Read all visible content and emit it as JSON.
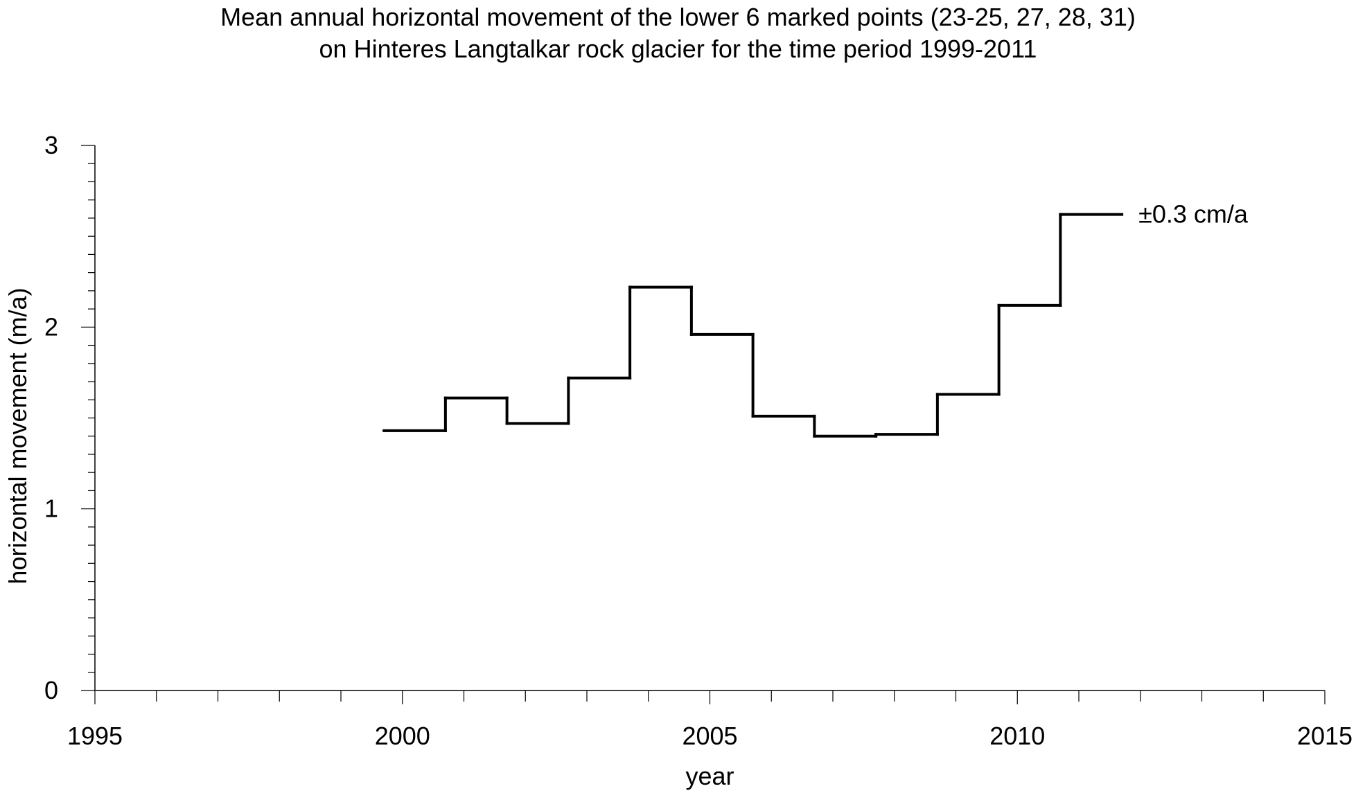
{
  "chart_data": {
    "type": "line",
    "title": "Mean annual horizontal movement of the lower 6 marked points (23-25, 27, 28, 31)",
    "subtitle": "on Hinteres Langtalkar rock glacier for the time period 1999-2011",
    "xlabel": "year",
    "ylabel": "horizontal movement (m/a)",
    "xlim": [
      1995,
      2015
    ],
    "ylim": [
      0,
      3
    ],
    "x_ticks": [
      "1995",
      "2000",
      "2005",
      "2010",
      "2015"
    ],
    "y_ticks": [
      "0",
      "1",
      "2",
      "3"
    ],
    "x_minor_step": 1,
    "y_minor_step": 0.1,
    "grid": false,
    "legend": "none",
    "line_color": "#000000",
    "series": [
      {
        "style": "step",
        "segments": [
          {
            "x_start": 1999.7,
            "x_end": 2000.7,
            "value": 1.43
          },
          {
            "x_start": 2000.7,
            "x_end": 2001.7,
            "value": 1.61
          },
          {
            "x_start": 2001.7,
            "x_end": 2002.7,
            "value": 1.47
          },
          {
            "x_start": 2002.7,
            "x_end": 2003.7,
            "value": 1.72
          },
          {
            "x_start": 2003.7,
            "x_end": 2004.7,
            "value": 2.22
          },
          {
            "x_start": 2004.7,
            "x_end": 2005.7,
            "value": 1.96
          },
          {
            "x_start": 2005.7,
            "x_end": 2006.7,
            "value": 1.51
          },
          {
            "x_start": 2006.7,
            "x_end": 2007.7,
            "value": 1.4
          },
          {
            "x_start": 2007.7,
            "x_end": 2008.7,
            "value": 1.41
          },
          {
            "x_start": 2008.7,
            "x_end": 2009.7,
            "value": 1.63
          },
          {
            "x_start": 2009.7,
            "x_end": 2010.7,
            "value": 2.12
          },
          {
            "x_start": 2010.7,
            "x_end": 2011.7,
            "value": 2.62
          }
        ]
      }
    ],
    "annotations": [
      {
        "text": "±0.3 cm/a",
        "x": 2011.7,
        "y": 2.62
      }
    ]
  }
}
